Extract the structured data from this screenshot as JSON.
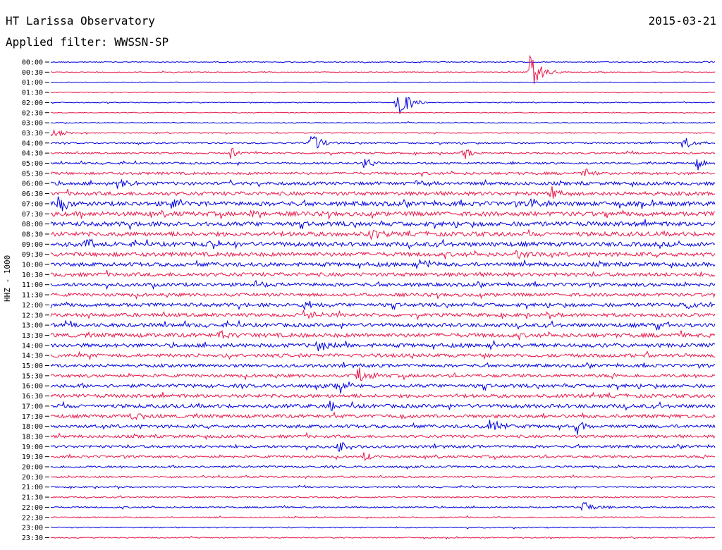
{
  "header": {
    "station": "HT Larissa Observatory",
    "date": "2015-03-21",
    "filter": "Applied filter: WWSSN-SP"
  },
  "colors": {
    "odd_row": "#0000e0",
    "even_row": "#e8184a",
    "axis": "#000000"
  },
  "chart_data": {
    "type": "line",
    "title": "HT Larissa Observatory",
    "subtitle": "Applied filter: WWSSN-SP",
    "ylabel": "HHZ - 1000",
    "xlabel": "",
    "grid": false,
    "row_labels": [
      "00:00",
      "00:30",
      "01:00",
      "01:30",
      "02:00",
      "02:30",
      "03:00",
      "03:30",
      "04:00",
      "04:30",
      "05:00",
      "05:30",
      "06:00",
      "06:30",
      "07:00",
      "07:30",
      "08:00",
      "08:30",
      "09:00",
      "09:30",
      "10:00",
      "10:30",
      "11:00",
      "11:30",
      "12:00",
      "12:30",
      "13:00",
      "13:30",
      "14:00",
      "14:30",
      "15:00",
      "15:30",
      "16:00",
      "16:30",
      "17:00",
      "17:30",
      "18:00",
      "18:30",
      "19:00",
      "19:30",
      "20:00",
      "20:30",
      "21:00",
      "21:30",
      "22:00",
      "22:30",
      "23:00",
      "23:30"
    ],
    "noise_level": [
      0.6,
      0.6,
      0.5,
      0.5,
      0.6,
      0.6,
      0.6,
      0.8,
      1.0,
      1.2,
      1.4,
      1.8,
      2.2,
      2.6,
      3.0,
      3.0,
      3.0,
      3.0,
      3.0,
      2.8,
      2.6,
      2.6,
      2.4,
      2.2,
      2.4,
      2.4,
      2.6,
      2.8,
      2.6,
      2.4,
      2.2,
      2.2,
      2.4,
      2.4,
      2.6,
      2.4,
      2.2,
      2.0,
      1.8,
      1.6,
      1.4,
      1.2,
      1.0,
      1.0,
      1.0,
      0.9,
      0.8,
      0.8
    ],
    "events": [
      {
        "row": 1,
        "pos": 0.72,
        "amp": 30
      },
      {
        "row": 4,
        "pos": 0.52,
        "amp": 28
      },
      {
        "row": 7,
        "pos": 0.0,
        "amp": 8
      },
      {
        "row": 8,
        "pos": 0.39,
        "amp": 18
      },
      {
        "row": 8,
        "pos": 0.95,
        "amp": 12
      },
      {
        "row": 9,
        "pos": 0.27,
        "amp": 9
      },
      {
        "row": 9,
        "pos": 0.62,
        "amp": 10
      },
      {
        "row": 10,
        "pos": 0.47,
        "amp": 10
      },
      {
        "row": 10,
        "pos": 0.97,
        "amp": 11
      },
      {
        "row": 11,
        "pos": 0.8,
        "amp": 9
      },
      {
        "row": 12,
        "pos": 0.1,
        "amp": 8
      },
      {
        "row": 12,
        "pos": 0.55,
        "amp": 10
      },
      {
        "row": 13,
        "pos": 0.75,
        "amp": 10
      },
      {
        "row": 14,
        "pos": 0.01,
        "amp": 13
      },
      {
        "row": 14,
        "pos": 0.18,
        "amp": 10
      },
      {
        "row": 14,
        "pos": 0.72,
        "amp": 10
      },
      {
        "row": 15,
        "pos": 0.3,
        "amp": 8
      },
      {
        "row": 17,
        "pos": 0.48,
        "amp": 9
      },
      {
        "row": 18,
        "pos": 0.05,
        "amp": 11
      },
      {
        "row": 18,
        "pos": 0.24,
        "amp": 9
      },
      {
        "row": 19,
        "pos": 0.7,
        "amp": 9
      },
      {
        "row": 20,
        "pos": 0.56,
        "amp": 8
      },
      {
        "row": 22,
        "pos": 0.3,
        "amp": 8
      },
      {
        "row": 24,
        "pos": 0.38,
        "amp": 10
      },
      {
        "row": 24,
        "pos": 0.95,
        "amp": 10
      },
      {
        "row": 25,
        "pos": 0.38,
        "amp": 10
      },
      {
        "row": 26,
        "pos": 0.91,
        "amp": 9
      },
      {
        "row": 27,
        "pos": 0.25,
        "amp": 8
      },
      {
        "row": 28,
        "pos": 0.4,
        "amp": 10
      },
      {
        "row": 31,
        "pos": 0.46,
        "amp": 12
      },
      {
        "row": 32,
        "pos": 0.43,
        "amp": 13
      },
      {
        "row": 34,
        "pos": 0.42,
        "amp": 8
      },
      {
        "row": 35,
        "pos": 0.12,
        "amp": 8
      },
      {
        "row": 36,
        "pos": 0.66,
        "amp": 12
      },
      {
        "row": 36,
        "pos": 0.79,
        "amp": 12
      },
      {
        "row": 38,
        "pos": 0.43,
        "amp": 10
      },
      {
        "row": 39,
        "pos": 0.47,
        "amp": 8
      },
      {
        "row": 44,
        "pos": 0.8,
        "amp": 13
      }
    ]
  }
}
